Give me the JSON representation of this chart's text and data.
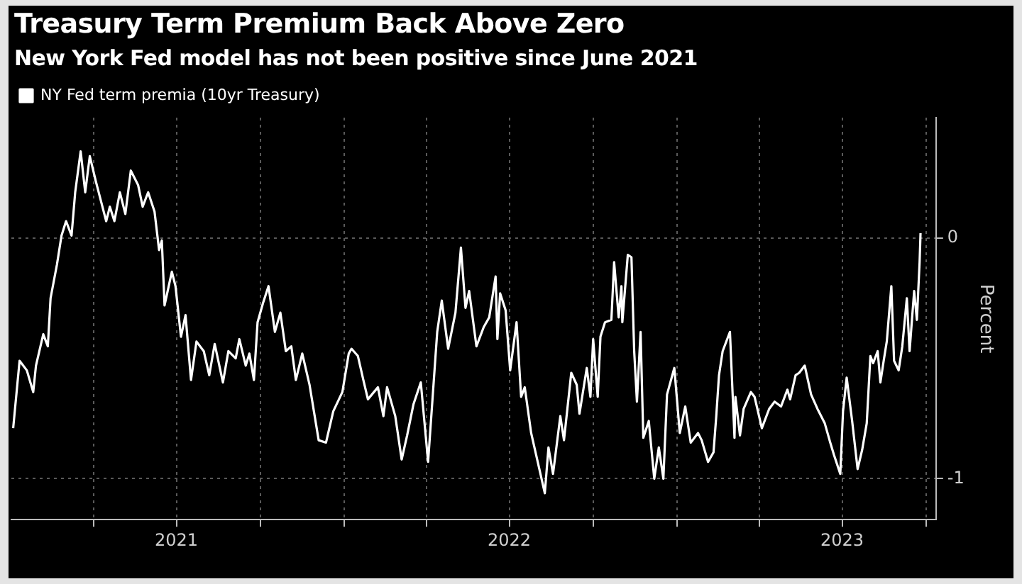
{
  "chart_data": {
    "type": "line",
    "title": "Treasury Term Premium Back Above Zero",
    "subtitle": "New York Fed model has not been positive since June 2021",
    "ylabel": "Percent",
    "x": [
      "2021-01-03",
      "2021-01-10",
      "2021-01-18",
      "2021-01-25",
      "2021-01-28",
      "2021-02-05",
      "2021-02-10",
      "2021-02-13",
      "2021-02-20",
      "2021-02-25",
      "2021-03-02",
      "2021-03-08",
      "2021-03-12",
      "2021-03-18",
      "2021-03-23",
      "2021-03-28",
      "2021-04-04",
      "2021-04-15",
      "2021-04-19",
      "2021-04-24",
      "2021-04-30",
      "2021-05-06",
      "2021-05-12",
      "2021-05-20",
      "2021-05-25",
      "2021-05-31",
      "2021-06-07",
      "2021-06-12",
      "2021-06-15",
      "2021-06-18",
      "2021-06-26",
      "2021-06-30",
      "2021-07-06",
      "2021-07-11",
      "2021-07-17",
      "2021-07-23",
      "2021-07-31",
      "2021-08-06",
      "2021-08-12",
      "2021-08-21",
      "2021-08-27",
      "2021-09-04",
      "2021-09-08",
      "2021-09-15",
      "2021-09-19",
      "2021-09-24",
      "2021-09-28",
      "2021-10-04",
      "2021-10-10",
      "2021-10-17",
      "2021-10-23",
      "2021-10-29",
      "2021-11-04",
      "2021-11-09",
      "2021-11-16",
      "2021-11-24",
      "2021-12-04",
      "2021-12-12",
      "2021-12-20",
      "2021-12-30",
      "2022-01-06",
      "2022-01-09",
      "2022-01-16",
      "2022-01-22",
      "2022-01-27",
      "2022-02-07",
      "2022-02-13",
      "2022-02-17",
      "2022-02-26",
      "2022-03-05",
      "2022-03-11",
      "2022-03-18",
      "2022-03-26",
      "2022-04-03",
      "2022-04-13",
      "2022-04-18",
      "2022-04-25",
      "2022-05-03",
      "2022-05-09",
      "2022-05-14",
      "2022-05-18",
      "2022-05-26",
      "2022-06-03",
      "2022-06-09",
      "2022-06-16",
      "2022-06-18",
      "2022-06-21",
      "2022-06-27",
      "2022-07-02",
      "2022-07-09",
      "2022-07-14",
      "2022-07-18",
      "2022-07-25",
      "2022-08-03",
      "2022-08-09",
      "2022-08-13",
      "2022-08-18",
      "2022-08-26",
      "2022-08-30",
      "2022-09-07",
      "2022-09-13",
      "2022-09-16",
      "2022-09-24",
      "2022-09-28",
      "2022-10-01",
      "2022-10-06",
      "2022-10-09",
      "2022-10-14",
      "2022-10-21",
      "2022-10-24",
      "2022-10-29",
      "2022-11-01",
      "2022-11-02",
      "2022-11-08",
      "2022-11-12",
      "2022-11-15",
      "2022-11-18",
      "2022-11-22",
      "2022-11-25",
      "2022-12-01",
      "2022-12-07",
      "2022-12-12",
      "2022-12-17",
      "2022-12-21",
      "2022-12-29",
      "2023-01-04",
      "2023-01-10",
      "2023-01-16",
      "2023-01-24",
      "2023-01-28",
      "2023-02-04",
      "2023-02-10",
      "2023-02-13",
      "2023-02-16",
      "2023-02-20",
      "2023-02-28",
      "2023-03-05",
      "2023-03-06",
      "2023-03-11",
      "2023-03-15",
      "2023-03-23",
      "2023-03-27",
      "2023-04-04",
      "2023-04-12",
      "2023-04-18",
      "2023-04-25",
      "2023-05-02",
      "2023-05-05",
      "2023-05-11",
      "2023-05-15",
      "2023-05-21",
      "2023-05-28",
      "2023-06-04",
      "2023-06-12",
      "2023-06-18",
      "2023-06-22",
      "2023-06-29",
      "2023-07-02",
      "2023-07-06",
      "2023-07-12",
      "2023-07-18",
      "2023-07-23",
      "2023-07-28",
      "2023-08-01",
      "2023-08-04",
      "2023-08-09",
      "2023-08-12",
      "2023-08-16",
      "2023-08-19",
      "2023-08-24",
      "2023-08-27",
      "2023-09-01",
      "2023-09-05",
      "2023-09-10",
      "2023-09-13",
      "2023-09-18",
      "2023-09-21",
      "2023-09-24",
      "2023-09-25"
    ],
    "series": [
      {
        "name": "NY Fed term premia (10yr Treasury)",
        "color": "#ffffff",
        "values": [
          -0.79,
          -0.51,
          -0.55,
          -0.64,
          -0.53,
          -0.4,
          -0.45,
          -0.25,
          -0.11,
          0.01,
          0.07,
          0.01,
          0.19,
          0.36,
          0.19,
          0.34,
          0.23,
          0.07,
          0.13,
          0.07,
          0.19,
          0.1,
          0.28,
          0.22,
          0.13,
          0.19,
          0.11,
          -0.05,
          -0.01,
          -0.28,
          -0.14,
          -0.2,
          -0.41,
          -0.32,
          -0.59,
          -0.43,
          -0.47,
          -0.57,
          -0.44,
          -0.6,
          -0.47,
          -0.5,
          -0.42,
          -0.53,
          -0.48,
          -0.59,
          -0.35,
          -0.27,
          -0.2,
          -0.39,
          -0.31,
          -0.47,
          -0.45,
          -0.59,
          -0.48,
          -0.61,
          -0.84,
          -0.85,
          -0.72,
          -0.64,
          -0.48,
          -0.46,
          -0.49,
          -0.59,
          -0.67,
          -0.62,
          -0.74,
          -0.62,
          -0.74,
          -0.92,
          -0.82,
          -0.69,
          -0.6,
          -0.93,
          -0.39,
          -0.26,
          -0.46,
          -0.31,
          -0.04,
          -0.29,
          -0.22,
          -0.45,
          -0.37,
          -0.33,
          -0.16,
          -0.42,
          -0.23,
          -0.3,
          -0.55,
          -0.35,
          -0.66,
          -0.62,
          -0.81,
          -0.96,
          -1.06,
          -0.87,
          -0.98,
          -0.74,
          -0.84,
          -0.56,
          -0.61,
          -0.73,
          -0.54,
          -0.66,
          -0.42,
          -0.66,
          -0.41,
          -0.35,
          -0.34,
          -0.1,
          -0.33,
          -0.2,
          -0.35,
          -0.07,
          -0.08,
          -0.47,
          -0.68,
          -0.39,
          -0.83,
          -0.76,
          -1.0,
          -0.87,
          -1.0,
          -0.65,
          -0.54,
          -0.81,
          -0.7,
          -0.85,
          -0.81,
          -0.84,
          -0.93,
          -0.89,
          -0.74,
          -0.57,
          -0.47,
          -0.39,
          -0.83,
          -0.66,
          -0.82,
          -0.71,
          -0.64,
          -0.66,
          -0.79,
          -0.71,
          -0.68,
          -0.7,
          -0.63,
          -0.67,
          -0.57,
          -0.56,
          -0.53,
          -0.65,
          -0.71,
          -0.77,
          -0.85,
          -0.9,
          -0.98,
          -0.72,
          -0.58,
          -0.76,
          -0.96,
          -0.88,
          -0.77,
          -0.49,
          -0.52,
          -0.47,
          -0.6,
          -0.5,
          -0.43,
          -0.2,
          -0.51,
          -0.55,
          -0.45,
          -0.25,
          -0.47,
          -0.22,
          -0.34,
          -0.1,
          0.02
        ]
      }
    ],
    "xlim": [
      "2021-01-01",
      "2023-10-12"
    ],
    "xticks": [
      {
        "value": "2021-04-01",
        "label": null
      },
      {
        "value": "2021-07-01",
        "label": "2021"
      },
      {
        "value": "2021-10-01",
        "label": null
      },
      {
        "value": "2022-01-01",
        "label": null
      },
      {
        "value": "2022-04-01",
        "label": null
      },
      {
        "value": "2022-07-01",
        "label": "2022"
      },
      {
        "value": "2022-10-01",
        "label": null
      },
      {
        "value": "2023-01-01",
        "label": null
      },
      {
        "value": "2023-04-01",
        "label": null
      },
      {
        "value": "2023-07-01",
        "label": "2023"
      },
      {
        "value": "2023-10-01",
        "label": null
      }
    ],
    "ylim": [
      -1.17,
      0.5
    ],
    "yticks": [
      0,
      -1
    ],
    "grid": true,
    "legend": "top left",
    "marker": "none",
    "line_style": "solid"
  }
}
